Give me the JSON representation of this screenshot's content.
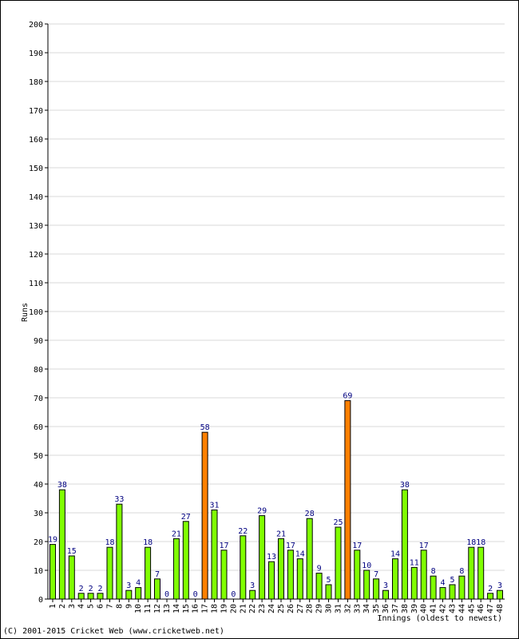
{
  "chart_data": {
    "type": "bar",
    "xlabel": "Innings (oldest to newest)",
    "ylabel": "Runs",
    "ylim": [
      0,
      200
    ],
    "ytick_step": 10,
    "grid": true,
    "categories": [
      "1",
      "2",
      "3",
      "4",
      "5",
      "6",
      "7",
      "8",
      "9",
      "10",
      "11",
      "12",
      "13",
      "14",
      "15",
      "16",
      "17",
      "18",
      "19",
      "20",
      "21",
      "22",
      "23",
      "24",
      "25",
      "26",
      "27",
      "28",
      "29",
      "30",
      "31",
      "32",
      "33",
      "34",
      "35",
      "36",
      "37",
      "38",
      "39",
      "40",
      "41",
      "42",
      "43",
      "44",
      "45",
      "46",
      "47",
      "48"
    ],
    "values": [
      19,
      38,
      15,
      2,
      2,
      2,
      18,
      33,
      3,
      4,
      18,
      7,
      0,
      21,
      27,
      0,
      58,
      31,
      17,
      0,
      22,
      3,
      29,
      13,
      21,
      17,
      14,
      28,
      9,
      5,
      25,
      69,
      17,
      10,
      7,
      3,
      14,
      38,
      11,
      17,
      8,
      4,
      5,
      8,
      18,
      18,
      2,
      3
    ],
    "highlight_indices": [
      16,
      31
    ],
    "colors": {
      "bar": "#80ff00",
      "highlight": "#ff8000",
      "label": "#000080",
      "grid": "#d8d8d8",
      "axis": "#000000"
    }
  },
  "footer": {
    "copyright": "(C) 2001-2015 Cricket Web (www.cricketweb.net)"
  }
}
